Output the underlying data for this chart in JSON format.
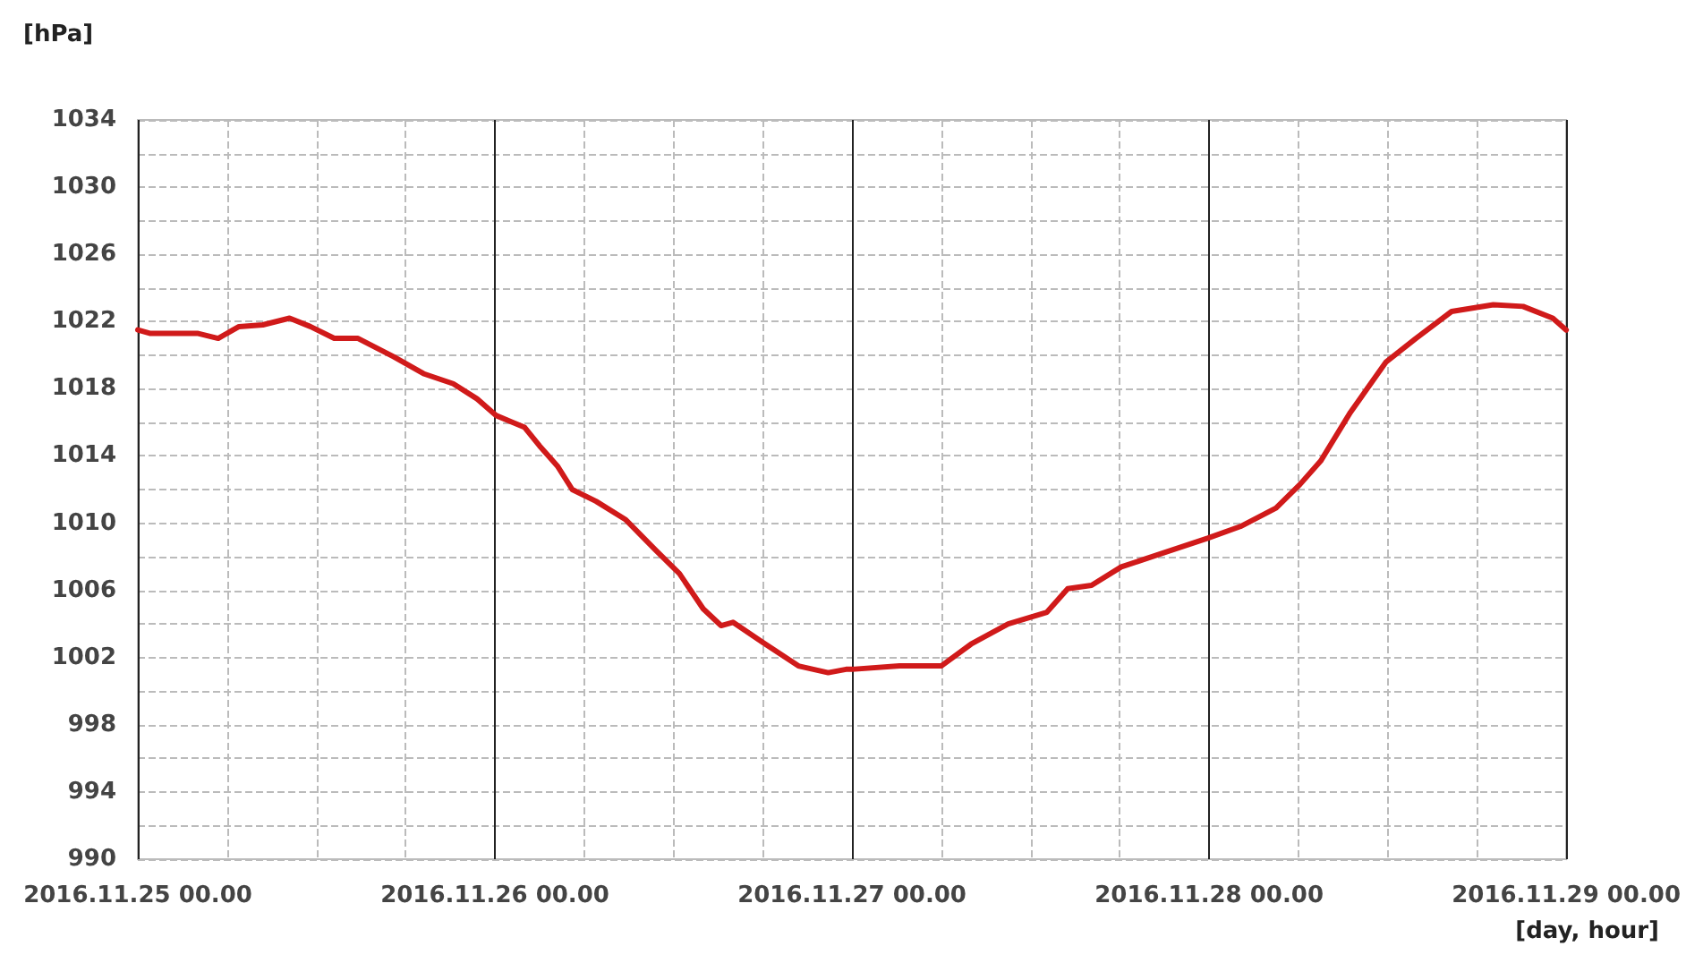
{
  "chart_data": {
    "type": "line",
    "xlabel": "[day, hour]",
    "ylabel": "[hPa]",
    "x": [
      "2016-11-25T00:00",
      "2016-11-25T00:48",
      "2016-11-25T04:00",
      "2016-11-25T05:24",
      "2016-11-25T06:48",
      "2016-11-25T08:24",
      "2016-11-25T10:12",
      "2016-11-25T11:36",
      "2016-11-25T13:12",
      "2016-11-25T14:48",
      "2016-11-25T17:12",
      "2016-11-25T19:12",
      "2016-11-25T21:12",
      "2016-11-25T22:48",
      "2016-11-26T00:06",
      "2016-11-26T01:12",
      "2016-11-26T02:00",
      "2016-11-26T03:00",
      "2016-11-26T04:12",
      "2016-11-26T05:12",
      "2016-11-26T06:48",
      "2016-11-26T08:48",
      "2016-11-26T10:48",
      "2016-11-26T12:24",
      "2016-11-26T14:00",
      "2016-11-26T15:12",
      "2016-11-26T16:00",
      "2016-11-26T18:00",
      "2016-11-26T20:24",
      "2016-11-26T22:24",
      "2016-11-26T23:36",
      "2016-11-27T00:00",
      "2016-11-27T03:12",
      "2016-11-27T06:00",
      "2016-11-27T08:00",
      "2016-11-27T10:30",
      "2016-11-27T13:06",
      "2016-11-27T14:30",
      "2016-11-27T16:06",
      "2016-11-27T18:06",
      "2016-11-27T20:30",
      "2016-11-27T23:54",
      "2016-11-28T02:06",
      "2016-11-28T04:30",
      "2016-11-28T06:06",
      "2016-11-28T07:30",
      "2016-11-28T09:30",
      "2016-11-28T11:54",
      "2016-11-28T13:54",
      "2016-11-28T16:18",
      "2016-11-28T19:06",
      "2016-11-28T21:06",
      "2016-11-28T23:06",
      "2016-11-29T00:00"
    ],
    "series": [
      {
        "color": "#d01a1a",
        "values": [
          1021.5,
          1021.3,
          1021.3,
          1021.0,
          1021.7,
          1021.8,
          1022.2,
          1021.7,
          1021.0,
          1021.0,
          1019.9,
          1018.9,
          1018.3,
          1017.4,
          1016.4,
          1016.0,
          1015.7,
          1014.6,
          1013.4,
          1012.0,
          1011.3,
          1010.2,
          1008.4,
          1007.0,
          1004.9,
          1003.9,
          1004.1,
          1002.9,
          1001.5,
          1001.1,
          1001.3,
          1001.3,
          1001.5,
          1001.5,
          1002.8,
          1004.0,
          1004.7,
          1006.1,
          1006.3,
          1007.4,
          1008.1,
          1009.1,
          1009.8,
          1010.9,
          1012.3,
          1013.7,
          1016.6,
          1019.6,
          1021.0,
          1022.6,
          1023.0,
          1022.9,
          1022.2,
          1021.5
        ]
      }
    ],
    "xlim": [
      "2016-11-25T00:00",
      "2016-11-29T00:00"
    ],
    "xticks": [
      {
        "value": "2016-11-25T00:00",
        "label": "2016.11.25 00.00"
      },
      {
        "value": "2016-11-25T06:00",
        "label": null
      },
      {
        "value": "2016-11-25T12:00",
        "label": null
      },
      {
        "value": "2016-11-25T18:00",
        "label": null
      },
      {
        "value": "2016-11-26T00:00",
        "label": "2016.11.26 00.00"
      },
      {
        "value": "2016-11-26T06:00",
        "label": null
      },
      {
        "value": "2016-11-26T12:00",
        "label": null
      },
      {
        "value": "2016-11-26T18:00",
        "label": null
      },
      {
        "value": "2016-11-27T00:00",
        "label": "2016.11.27 00.00"
      },
      {
        "value": "2016-11-27T06:00",
        "label": null
      },
      {
        "value": "2016-11-27T12:00",
        "label": null
      },
      {
        "value": "2016-11-27T18:00",
        "label": null
      },
      {
        "value": "2016-11-28T00:00",
        "label": "2016.11.28 00.00"
      },
      {
        "value": "2016-11-28T06:00",
        "label": null
      },
      {
        "value": "2016-11-28T12:00",
        "label": null
      },
      {
        "value": "2016-11-28T18:00",
        "label": null
      },
      {
        "value": "2016-11-29T00:00",
        "label": "2016.11.29 00.00"
      }
    ],
    "ylim": [
      990,
      1034
    ],
    "yticks": [
      990,
      {
        "value": 992,
        "label": null
      },
      994,
      {
        "value": 996,
        "label": null
      },
      998,
      {
        "value": 1000,
        "label": null
      },
      1002,
      {
        "value": 1004,
        "label": null
      },
      1006,
      {
        "value": 1008,
        "label": null
      },
      1010,
      {
        "value": 1012,
        "label": null
      },
      1014,
      {
        "value": 1016,
        "label": null
      },
      1018,
      {
        "value": 1020,
        "label": null
      },
      1022,
      {
        "value": 1024,
        "label": null
      },
      1026,
      {
        "value": 1028,
        "label": null
      },
      1030,
      {
        "value": 1032,
        "label": null
      },
      1034
    ],
    "grid": true,
    "marker": "none",
    "line_style": "solid"
  }
}
